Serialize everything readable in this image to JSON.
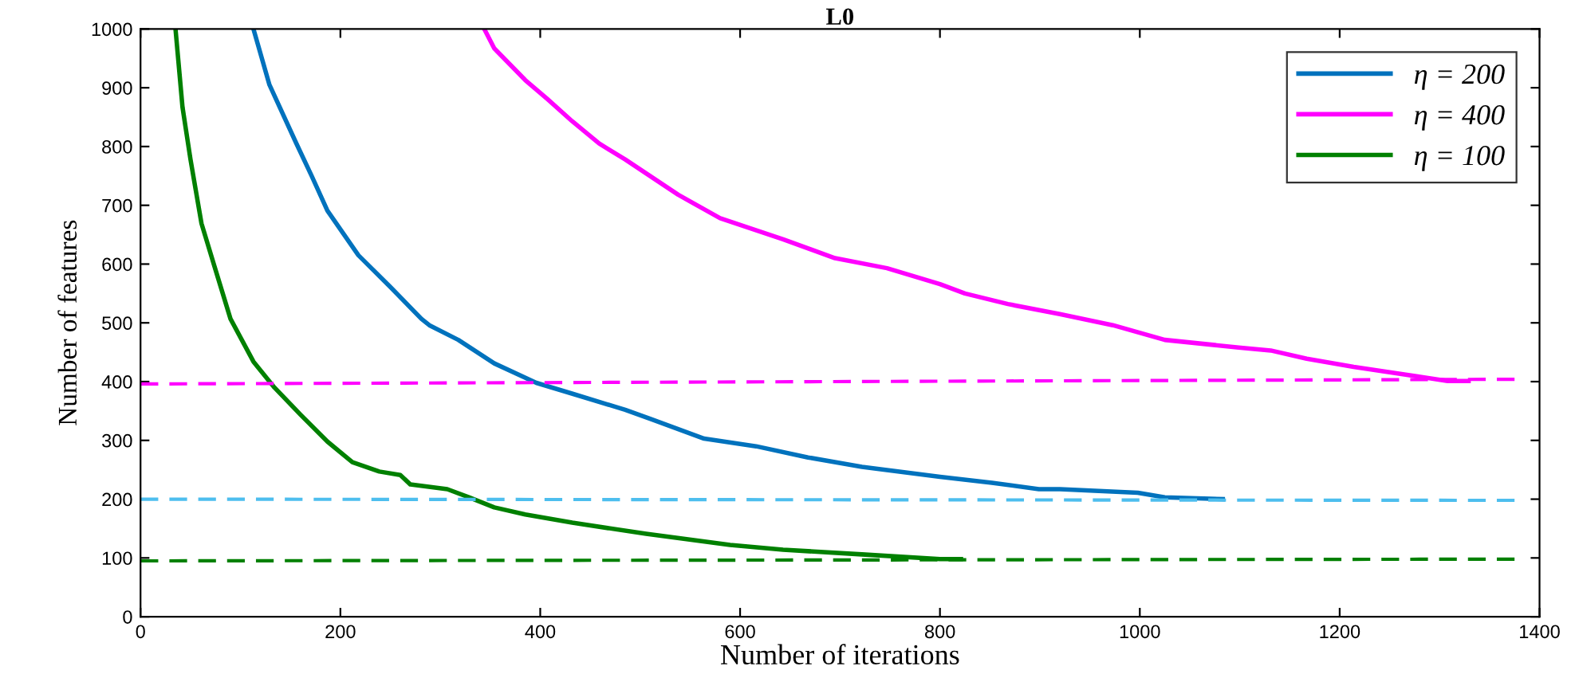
{
  "chart_data": {
    "type": "line",
    "title": "L0",
    "xlabel": "Number of iterations",
    "ylabel": "Number of features",
    "xlim": [
      0,
      1400
    ],
    "xticks": [
      0,
      200,
      400,
      600,
      800,
      1000,
      1200,
      1400
    ],
    "ylim": [
      0,
      1000
    ],
    "yticks": [
      0,
      100,
      200,
      300,
      400,
      500,
      600,
      700,
      800,
      900,
      1000
    ],
    "grid": false,
    "legend": "top right",
    "marker": "none",
    "series": [
      {
        "name": "η = 200",
        "color": "#0072bd",
        "line_style": "solid",
        "x": [
          113,
          129,
          156,
          171,
          187,
          218,
          250,
          281,
          289,
          318,
          354,
          396,
          433,
          485,
          511,
          564,
          616,
          668,
          722,
          800,
          852,
          899,
          920,
          998,
          1025,
          1083
        ],
        "values": [
          1000,
          905,
          805,
          751,
          691,
          615,
          561,
          507,
          496,
          471,
          431,
          398,
          379,
          352,
          336,
          303,
          290,
          271,
          255,
          238,
          228,
          217,
          217,
          211,
          203,
          200
        ]
      },
      {
        "name": "η = 400",
        "color": "#ff00ff",
        "line_style": "solid",
        "x": [
          344,
          354,
          385,
          407,
          432,
          459,
          485,
          538,
          580,
          643,
          695,
          747,
          800,
          825,
          868,
          920,
          973,
          1025,
          1099,
          1131,
          1167,
          1214,
          1266,
          1308,
          1329
        ],
        "values": [
          1000,
          967,
          913,
          881,
          843,
          805,
          778,
          718,
          678,
          642,
          610,
          593,
          566,
          550,
          532,
          515,
          496,
          471,
          458,
          453,
          439,
          425,
          412,
          401,
          401
        ]
      },
      {
        "name": "η = 100",
        "color": "#008000",
        "line_style": "solid",
        "x": [
          35,
          42,
          50,
          61,
          74,
          90,
          113,
          134,
          160,
          187,
          212,
          239,
          260,
          270,
          307,
          329,
          354,
          385,
          432,
          506,
          590,
          643,
          722,
          800,
          821
        ],
        "values": [
          1000,
          867,
          778,
          669,
          596,
          507,
          434,
          390,
          344,
          298,
          263,
          247,
          241,
          225,
          217,
          203,
          186,
          174,
          160,
          141,
          122,
          114,
          106,
          98,
          98
        ]
      },
      {
        "color": "#ff00ff",
        "line_style": "dashed",
        "x": [
          0,
          1375
        ],
        "values": [
          396,
          404
        ]
      },
      {
        "color": "#4dbeee",
        "line_style": "dashed",
        "x": [
          0,
          1375
        ],
        "values": [
          200,
          198
        ]
      },
      {
        "color": "#008000",
        "line_style": "dashed",
        "x": [
          0,
          1375
        ],
        "values": [
          95,
          98
        ]
      }
    ]
  }
}
